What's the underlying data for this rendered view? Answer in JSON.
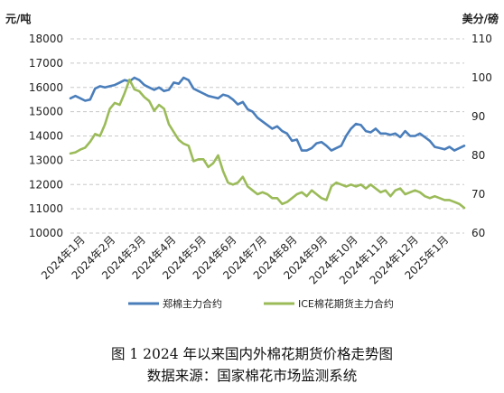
{
  "chart_data": {
    "type": "line",
    "y_left_label": "元/吨",
    "y_right_label": "美分/磅",
    "y_left_ticks": [
      10000,
      11000,
      12000,
      13000,
      14000,
      15000,
      16000,
      17000,
      18000
    ],
    "y_right_ticks": [
      60,
      70,
      80,
      90,
      100,
      110
    ],
    "ylim_left": [
      10000,
      18000
    ],
    "ylim_right": [
      60,
      110
    ],
    "x_ticks": [
      "2024年1月",
      "2024年2月",
      "2024年3月",
      "2024年4月",
      "2024年5月",
      "2024年6月",
      "2024年7月",
      "2024年8月",
      "2024年9月",
      "2024年10月",
      "2024年11月",
      "2024年12月",
      "2025年1月"
    ],
    "grid": true,
    "legend_position": "bottom",
    "colors": {
      "zce": "#4a7ebb",
      "ice": "#9bbb59"
    },
    "series": [
      {
        "name": "郑棉主力合约",
        "axis": "left",
        "values": [
          15550,
          15650,
          15550,
          15450,
          15500,
          15950,
          16050,
          16000,
          16050,
          16100,
          16200,
          16300,
          16250,
          16400,
          16300,
          16100,
          16000,
          15900,
          16000,
          15850,
          15900,
          16200,
          16150,
          16400,
          16300,
          15950,
          15850,
          15750,
          15650,
          15600,
          15550,
          15700,
          15650,
          15500,
          15300,
          15400,
          15100,
          15000,
          14750,
          14600,
          14450,
          14300,
          14400,
          14200,
          14100,
          13800,
          13850,
          13400,
          13400,
          13500,
          13700,
          13750,
          13600,
          13400,
          13500,
          13600,
          14000,
          14300,
          14500,
          14450,
          14200,
          14150,
          14300,
          14100,
          14100,
          14050,
          14100,
          13950,
          14200,
          14000,
          14000,
          14100,
          13950,
          13800,
          13550,
          13500,
          13450,
          13550,
          13400,
          13500,
          13600
        ]
      },
      {
        "name": "ICE棉花期货主力合约",
        "axis": "right",
        "values": [
          80.5,
          80.8,
          81.5,
          82.0,
          83.5,
          85.5,
          85.0,
          88.0,
          92.0,
          93.5,
          93.0,
          96.0,
          99.5,
          97.0,
          96.5,
          95.0,
          94.0,
          91.5,
          93.0,
          92.0,
          88.0,
          86.0,
          84.0,
          83.0,
          82.5,
          78.5,
          79.0,
          79.0,
          77.0,
          78.0,
          80.0,
          76.0,
          73.0,
          72.5,
          73.0,
          74.5,
          72.0,
          71.0,
          70.0,
          70.5,
          70.0,
          69.0,
          69.0,
          67.5,
          68.0,
          69.0,
          70.0,
          70.5,
          69.5,
          71.0,
          70.0,
          69.0,
          68.5,
          72.0,
          73.0,
          72.5,
          72.0,
          72.5,
          72.0,
          72.5,
          71.5,
          72.5,
          71.5,
          70.5,
          71.0,
          69.5,
          71.0,
          71.5,
          70.0,
          70.5,
          71.0,
          70.5,
          69.5,
          69.0,
          69.5,
          69.0,
          68.5,
          68.5,
          68.0,
          67.5,
          66.5
        ]
      }
    ]
  },
  "caption": {
    "line1": "图 1   2024 年以来国内外棉花期货价格走势图",
    "line2": "数据来源：国家棉花市场监测系统"
  }
}
